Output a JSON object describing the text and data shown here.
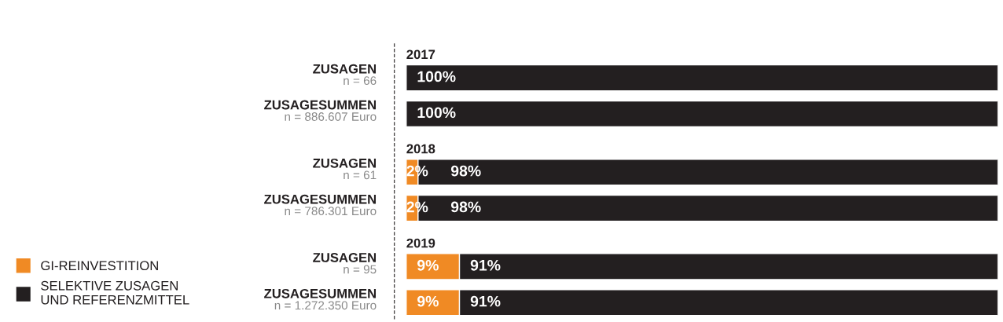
{
  "chart_data": {
    "type": "bar",
    "orientation": "horizontal",
    "stacked": true,
    "categories": [
      "ZUSAGEN\nn = 66",
      "ZUSAGESUMMEN\nn = 886.607 Euro",
      "ZUSAGEN\nn = 61",
      "ZUSAGESUMMEN\nn = 786.301 Euro",
      "ZUSAGEN\nn = 95",
      "ZUSAGESUMMEN\nn = 1.272.350 Euro"
    ],
    "series": [
      {
        "name": "GI-REINVESTITION",
        "color": "#f08a24",
        "values": [
          null,
          null,
          2,
          2,
          9,
          9
        ],
        "value_labels": [
          null,
          null,
          "2%",
          "2%",
          "9%",
          "9%"
        ]
      },
      {
        "name": "SELEKTIVE ZUSAGEN\nUND REFERENZMITTEL",
        "color": "#231f20",
        "values": [
          100,
          100,
          98,
          98,
          91,
          91
        ],
        "value_labels": [
          "100%",
          "100%",
          "98%",
          "98%",
          "91%",
          "91%"
        ]
      }
    ],
    "xlim": [
      0,
      100
    ],
    "tick_labels": "y",
    "grid": false,
    "legend": "bottom left",
    "annotations": [
      "2017",
      "2018",
      "2019"
    ]
  }
}
